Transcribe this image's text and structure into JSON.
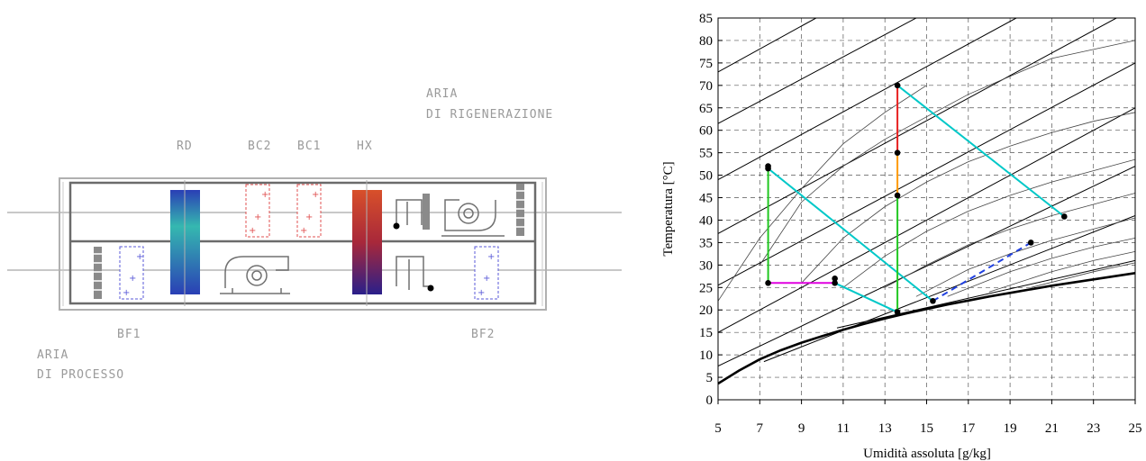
{
  "schematic": {
    "labels": {
      "rd": "RD",
      "bc2": "BC2",
      "bc1": "BC1",
      "hx": "HX",
      "bf1": "BF1",
      "bf2": "BF2",
      "regen_line1": "ARIA",
      "regen_line2": "DI RIGENERAZIONE",
      "process_line1": "ARIA",
      "process_line2": "DI PROCESSO"
    },
    "colors": {
      "rd_top": "#35b8b0",
      "rd_bottom": "#2a3fb5",
      "hx_top": "#d8502a",
      "hx_bottom": "#2a1f8a",
      "heating_coil": "#e05050",
      "cooling_coil": "#5a5ad8"
    }
  },
  "chart_data": {
    "type": "line",
    "xlabel": "Umidità assoluta [g/kg]",
    "ylabel": "Temperatura [°C]",
    "xlim": [
      5,
      25
    ],
    "ylim": [
      0,
      85
    ],
    "xticks": [
      5,
      7,
      9,
      11,
      13,
      15,
      17,
      19,
      21,
      23,
      25
    ],
    "yticks": [
      0,
      5,
      10,
      15,
      20,
      25,
      30,
      35,
      40,
      45,
      50,
      55,
      60,
      65,
      70,
      75,
      80,
      85
    ],
    "grid": true,
    "saturation_curve": [
      [
        5.0,
        3.6
      ],
      [
        6.0,
        6.5
      ],
      [
        7.0,
        9.0
      ],
      [
        8.0,
        11.0
      ],
      [
        9.0,
        12.7
      ],
      [
        10.0,
        14.2
      ],
      [
        11.0,
        15.6
      ],
      [
        12.0,
        16.9
      ],
      [
        13.0,
        18.1
      ],
      [
        14.0,
        19.2
      ],
      [
        15.0,
        20.2
      ],
      [
        16.0,
        21.2
      ],
      [
        17.0,
        22.1
      ],
      [
        18.0,
        23.0
      ],
      [
        19.0,
        23.8
      ],
      [
        20.0,
        24.6
      ],
      [
        21.0,
        25.4
      ],
      [
        22.0,
        26.1
      ],
      [
        23.0,
        26.8
      ],
      [
        24.0,
        27.5
      ],
      [
        25.0,
        28.2
      ]
    ],
    "enthalpy_lines": [
      [
        [
          5.0,
          73.0
        ],
        [
          9.7,
          85.0
        ]
      ],
      [
        [
          5.0,
          61.5
        ],
        [
          14.5,
          85.0
        ]
      ],
      [
        [
          5.0,
          49.0
        ],
        [
          19.3,
          85.0
        ]
      ],
      [
        [
          5.0,
          37.0
        ],
        [
          24.1,
          85.0
        ]
      ],
      [
        [
          5.0,
          25.5
        ],
        [
          25.0,
          75.0
        ]
      ],
      [
        [
          5.0,
          15.0
        ],
        [
          25.0,
          65.0
        ]
      ],
      [
        [
          5.0,
          7.5
        ],
        [
          25.0,
          52.0
        ]
      ],
      [
        [
          7.2,
          8.5
        ],
        [
          25.0,
          41.0
        ]
      ],
      [
        [
          10.7,
          16.0
        ],
        [
          25.0,
          31.0
        ]
      ]
    ],
    "humidity_curves": [
      [
        [
          5.0,
          22.0
        ],
        [
          7.0,
          36.0
        ],
        [
          9.0,
          47.0
        ],
        [
          11.0,
          57.0
        ],
        [
          13.0,
          64.0
        ],
        [
          15.0,
          70.0
        ]
      ],
      [
        [
          7.0,
          30.0
        ],
        [
          9.0,
          44.0
        ],
        [
          11.0,
          52.0
        ],
        [
          13.0,
          58.0
        ],
        [
          15.0,
          63.0
        ],
        [
          17.0,
          68.0
        ],
        [
          19.0,
          72.0
        ],
        [
          21.0,
          76.0
        ],
        [
          25.0,
          80.0
        ]
      ],
      [
        [
          9.0,
          26.0
        ],
        [
          11.0,
          36.0
        ],
        [
          13.0,
          43.0
        ],
        [
          15.0,
          48.5
        ],
        [
          17.0,
          53.0
        ],
        [
          19.0,
          56.5
        ],
        [
          21.0,
          59.5
        ],
        [
          23.0,
          62.0
        ],
        [
          25.0,
          64.0
        ]
      ],
      [
        [
          11.0,
          25.0
        ],
        [
          13.0,
          32.0
        ],
        [
          15.0,
          37.5
        ],
        [
          17.0,
          42.0
        ],
        [
          19.0,
          45.5
        ],
        [
          21.0,
          48.5
        ],
        [
          23.0,
          51.0
        ],
        [
          25.0,
          53.5
        ]
      ],
      [
        [
          13.0,
          25.0
        ],
        [
          15.0,
          30.0
        ],
        [
          17.0,
          34.5
        ],
        [
          19.0,
          38.0
        ],
        [
          21.0,
          41.0
        ],
        [
          23.0,
          43.5
        ],
        [
          25.0,
          46.0
        ]
      ],
      [
        [
          14.5,
          23.0
        ],
        [
          17.0,
          29.0
        ],
        [
          19.0,
          32.5
        ],
        [
          21.0,
          35.5
        ],
        [
          23.0,
          38.0
        ],
        [
          25.0,
          40.5
        ]
      ],
      [
        [
          16.0,
          23.0
        ],
        [
          19.0,
          28.5
        ],
        [
          21.0,
          31.5
        ],
        [
          23.0,
          34.0
        ],
        [
          25.0,
          36.0
        ]
      ],
      [
        [
          18.0,
          24.0
        ],
        [
          21.0,
          28.5
        ],
        [
          23.0,
          31.0
        ],
        [
          25.0,
          33.0
        ]
      ],
      [
        [
          20.0,
          25.0
        ],
        [
          23.0,
          28.5
        ],
        [
          25.0,
          30.5
        ]
      ]
    ],
    "process_segments": [
      {
        "color": "#00c8c8",
        "dash": false,
        "points": [
          [
            7.4,
            51.5
          ],
          [
            15.3,
            22.0
          ]
        ]
      },
      {
        "color": "#00c8c8",
        "dash": false,
        "points": [
          [
            10.6,
            26.0
          ],
          [
            13.6,
            19.5
          ]
        ]
      },
      {
        "color": "#00c8c8",
        "dash": false,
        "points": [
          [
            13.6,
            70.0
          ],
          [
            21.6,
            40.8
          ]
        ]
      },
      {
        "color": "#22c822",
        "dash": false,
        "points": [
          [
            7.4,
            52.0
          ],
          [
            7.4,
            26.0
          ]
        ]
      },
      {
        "color": "#22c822",
        "dash": false,
        "points": [
          [
            13.6,
            45.5
          ],
          [
            13.6,
            19.5
          ]
        ]
      },
      {
        "color": "#e000e0",
        "dash": false,
        "points": [
          [
            7.4,
            26.0
          ],
          [
            10.6,
            26.0
          ]
        ]
      },
      {
        "color": "#e82020",
        "dash": false,
        "points": [
          [
            13.6,
            70.0
          ],
          [
            13.6,
            55.0
          ]
        ]
      },
      {
        "color": "#ff9a00",
        "dash": false,
        "points": [
          [
            13.6,
            55.0
          ],
          [
            13.6,
            45.5
          ]
        ]
      },
      {
        "color": "#2040e0",
        "dash": true,
        "points": [
          [
            15.3,
            22.0
          ],
          [
            20.0,
            35.0
          ]
        ]
      }
    ],
    "state_points": [
      [
        7.4,
        52.0
      ],
      [
        7.4,
        51.5
      ],
      [
        7.4,
        26.0
      ],
      [
        10.6,
        26.0
      ],
      [
        10.6,
        27.0
      ],
      [
        13.6,
        70.0
      ],
      [
        13.6,
        55.0
      ],
      [
        13.6,
        45.5
      ],
      [
        13.6,
        19.5
      ],
      [
        15.3,
        22.0
      ],
      [
        20.0,
        35.0
      ],
      [
        21.6,
        40.8
      ]
    ]
  }
}
